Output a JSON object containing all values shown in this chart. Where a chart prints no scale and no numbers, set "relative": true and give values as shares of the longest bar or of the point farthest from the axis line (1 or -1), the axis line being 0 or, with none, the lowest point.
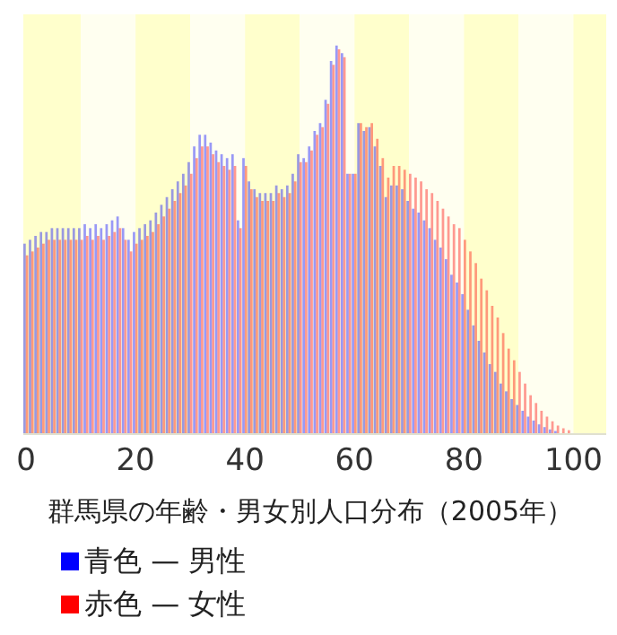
{
  "chart_data": {
    "type": "bar",
    "title": "群馬県の年齢・男女別人口分布（2005年）",
    "relative": true,
    "legend": "bottom",
    "grid": false,
    "x": [
      0,
      1,
      2,
      3,
      4,
      5,
      6,
      7,
      8,
      9,
      10,
      11,
      12,
      13,
      14,
      15,
      16,
      17,
      18,
      19,
      20,
      21,
      22,
      23,
      24,
      25,
      26,
      27,
      28,
      29,
      30,
      31,
      32,
      33,
      34,
      35,
      36,
      37,
      38,
      39,
      40,
      41,
      42,
      43,
      44,
      45,
      46,
      47,
      48,
      49,
      50,
      51,
      52,
      53,
      54,
      55,
      56,
      57,
      58,
      59,
      60,
      61,
      62,
      63,
      64,
      65,
      66,
      67,
      68,
      69,
      70,
      71,
      72,
      73,
      74,
      75,
      76,
      77,
      78,
      79,
      80,
      81,
      82,
      83,
      84,
      85,
      86,
      87,
      88,
      89,
      90,
      91,
      92,
      93,
      94,
      95,
      96,
      97,
      98,
      99
    ],
    "xlim": [
      -0.5,
      106
    ],
    "xticks": [
      0,
      20,
      40,
      60,
      80,
      100
    ],
    "bands": [
      {
        "axis": "x",
        "from": -0.5,
        "to": 10,
        "color": "#ffffcc"
      },
      {
        "axis": "x",
        "from": 10,
        "to": 20,
        "color": "#fffff0"
      },
      {
        "axis": "x",
        "from": 20,
        "to": 30,
        "color": "#ffffcc"
      },
      {
        "axis": "x",
        "from": 30,
        "to": 40,
        "color": "#fffff0"
      },
      {
        "axis": "x",
        "from": 40,
        "to": 50,
        "color": "#ffffcc"
      },
      {
        "axis": "x",
        "from": 50,
        "to": 60,
        "color": "#fffff0"
      },
      {
        "axis": "x",
        "from": 60,
        "to": 70,
        "color": "#ffffcc"
      },
      {
        "axis": "x",
        "from": 70,
        "to": 80,
        "color": "#fffff0"
      },
      {
        "axis": "x",
        "from": 80,
        "to": 90,
        "color": "#ffffcc"
      },
      {
        "axis": "x",
        "from": 90,
        "to": 100,
        "color": "#fffff0"
      },
      {
        "axis": "x",
        "from": 100,
        "to": 106,
        "color": "#ffffcc"
      }
    ],
    "series": [
      {
        "name": "青色 — 男性",
        "color": "#0000ff",
        "values": [
          0.49,
          0.5,
          0.51,
          0.52,
          0.52,
          0.53,
          0.53,
          0.53,
          0.53,
          0.53,
          0.53,
          0.54,
          0.53,
          0.54,
          0.53,
          0.54,
          0.55,
          0.56,
          0.53,
          0.5,
          0.52,
          0.53,
          0.54,
          0.55,
          0.57,
          0.59,
          0.61,
          0.63,
          0.65,
          0.67,
          0.7,
          0.74,
          0.77,
          0.77,
          0.75,
          0.73,
          0.72,
          0.71,
          0.72,
          0.55,
          0.71,
          0.65,
          0.63,
          0.62,
          0.62,
          0.62,
          0.64,
          0.63,
          0.64,
          0.67,
          0.72,
          0.71,
          0.74,
          0.78,
          0.8,
          0.86,
          0.96,
          1,
          0.98,
          0.67,
          0.67,
          0.8,
          0.78,
          0.79,
          0.74,
          0.69,
          0.61,
          0.64,
          0.64,
          0.63,
          0.6,
          0.58,
          0.57,
          0.55,
          0.53,
          0.5,
          0.48,
          0.45,
          0.41,
          0.39,
          0.36,
          0.32,
          0.28,
          0.24,
          0.21,
          0.18,
          0.16,
          0.13,
          0.11,
          0.09,
          0.075,
          0.06,
          0.045,
          0.035,
          0.025,
          0.018,
          0.012,
          0.008,
          null,
          null
        ]
      },
      {
        "name": "赤色 — 女性",
        "color": "#ff0000",
        "values": [
          0.46,
          0.47,
          0.48,
          0.49,
          0.5,
          0.5,
          0.5,
          0.5,
          0.5,
          0.5,
          0.5,
          0.51,
          0.5,
          0.51,
          0.5,
          0.51,
          0.52,
          0.53,
          0.5,
          0.47,
          0.49,
          0.5,
          0.51,
          0.52,
          0.54,
          0.56,
          0.58,
          0.6,
          0.62,
          0.64,
          0.67,
          0.71,
          0.74,
          0.74,
          0.72,
          0.7,
          0.69,
          0.68,
          0.69,
          0.53,
          0.69,
          0.63,
          0.61,
          0.6,
          0.6,
          0.6,
          0.62,
          0.61,
          0.62,
          0.65,
          0.7,
          0.7,
          0.73,
          0.77,
          0.79,
          0.85,
          0.95,
          0.99,
          0.97,
          0.67,
          0.67,
          0.8,
          0.79,
          0.8,
          0.76,
          0.71,
          0.66,
          0.69,
          0.69,
          0.68,
          0.67,
          0.66,
          0.65,
          0.63,
          0.62,
          0.6,
          0.58,
          0.56,
          0.54,
          0.53,
          0.5,
          0.47,
          0.44,
          0.4,
          0.37,
          0.33,
          0.3,
          0.26,
          0.22,
          0.19,
          0.16,
          0.13,
          0.1,
          0.08,
          0.06,
          0.045,
          0.033,
          0.022,
          0.015,
          0.01
        ]
      }
    ]
  }
}
